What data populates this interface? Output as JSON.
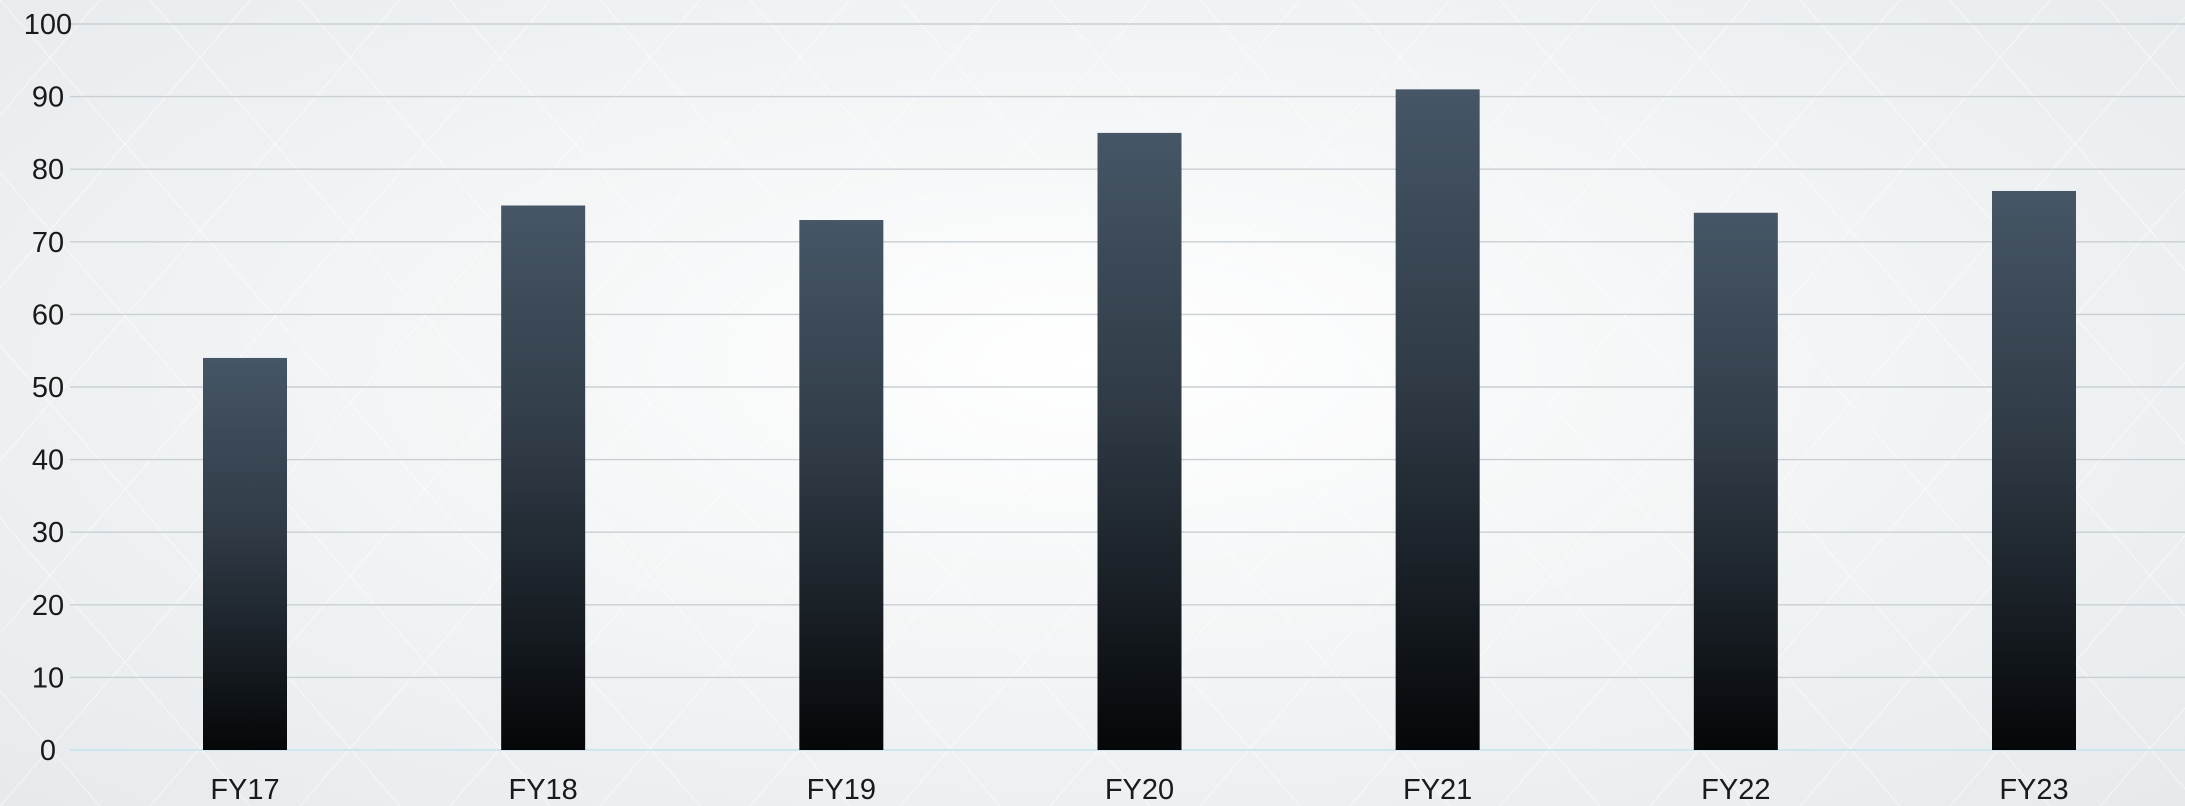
{
  "chart_data": {
    "type": "bar",
    "title": "",
    "xlabel": "",
    "ylabel": "",
    "categories": [
      "FY17",
      "FY18",
      "FY19",
      "FY20",
      "FY21",
      "FY22",
      "FY23"
    ],
    "values": [
      54,
      75,
      73,
      85,
      91,
      74,
      77
    ],
    "ylim": [
      0,
      100
    ],
    "yticks": [
      0,
      10,
      20,
      30,
      40,
      50,
      60,
      70,
      80,
      90,
      100
    ],
    "grid": true,
    "legend": "none",
    "bar_color_top": "#465666",
    "bar_color_bottom": "#050709",
    "gridline_color": "#c9cfd3",
    "background_color": "#f3f5f6"
  }
}
